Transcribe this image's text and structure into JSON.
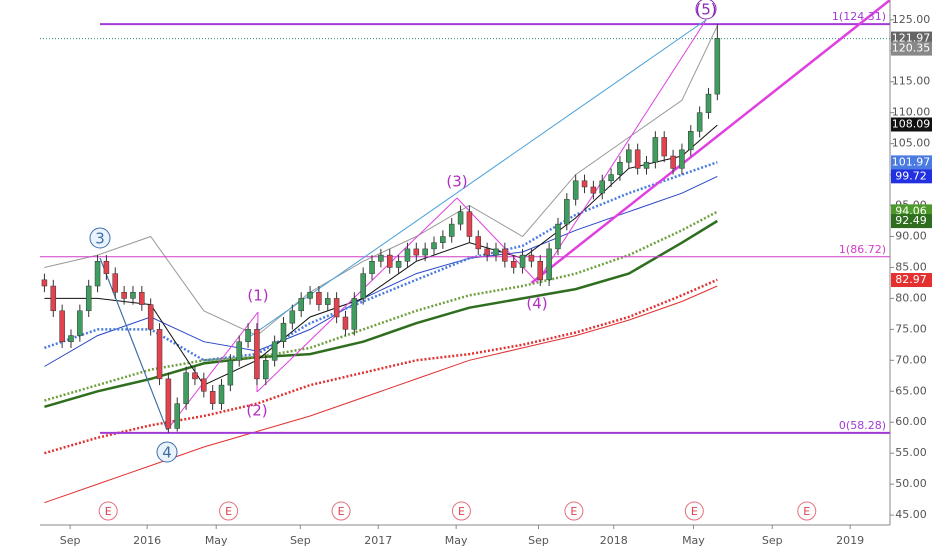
{
  "chart_data": {
    "type": "candlestick",
    "open": [
      83,
      82,
      78,
      73,
      74,
      78,
      82,
      86,
      84,
      81,
      80,
      81,
      79,
      75,
      67,
      59,
      63,
      68,
      67,
      65,
      63,
      66,
      70,
      73,
      75,
      67,
      70,
      73,
      76,
      78,
      80,
      81,
      79,
      80,
      77,
      75,
      80,
      84,
      86,
      87,
      85,
      86,
      88,
      87,
      88,
      89,
      90,
      92,
      94,
      90,
      88,
      87,
      88,
      86,
      85,
      87,
      86,
      83,
      88,
      92,
      96,
      99,
      98,
      97,
      99,
      100,
      102,
      104,
      101,
      102,
      106,
      103,
      101,
      104,
      107,
      110,
      113
    ],
    "high": [
      84,
      83,
      79,
      75,
      79,
      83,
      87,
      87,
      85,
      82,
      82,
      82,
      80,
      76,
      68,
      64,
      69,
      69,
      68,
      66,
      67,
      71,
      74,
      76,
      76,
      71,
      74,
      77,
      79,
      81,
      82,
      82,
      81,
      81,
      78,
      81,
      85,
      87,
      88,
      88,
      87,
      89,
      89,
      89,
      90,
      91,
      93,
      95,
      95,
      91,
      89,
      89,
      89,
      87,
      88,
      88,
      87,
      89,
      93,
      97,
      100,
      100,
      99,
      100,
      101,
      103,
      105,
      105,
      103,
      107,
      107,
      104,
      105,
      108,
      111,
      114,
      124.3
    ],
    "low": [
      81,
      77,
      72,
      72,
      73,
      77,
      81,
      83,
      80,
      79,
      79,
      78,
      74,
      66,
      58.3,
      58.5,
      62,
      66,
      64,
      62,
      62,
      65,
      69,
      72,
      66,
      66,
      69,
      72,
      75,
      77,
      79,
      78,
      78,
      76,
      74,
      74,
      79,
      83,
      85,
      84,
      84,
      85,
      86,
      86,
      87,
      88,
      89,
      91,
      89,
      87,
      86,
      86,
      85,
      84,
      84,
      85,
      82,
      82,
      87,
      91,
      95,
      97,
      96,
      96,
      98,
      99,
      101,
      100,
      100,
      101,
      102,
      100,
      100,
      103,
      106,
      109,
      112
    ],
    "close": [
      82,
      78,
      73,
      74,
      78,
      82,
      86,
      84,
      81,
      80,
      81,
      79,
      75,
      67,
      59,
      63,
      68,
      67,
      65,
      63,
      66,
      70,
      73,
      75,
      67,
      70,
      73,
      76,
      78,
      80,
      81,
      79,
      80,
      77,
      75,
      80,
      84,
      86,
      87,
      85,
      86,
      88,
      87,
      88,
      89,
      90,
      92,
      94,
      90,
      88,
      87,
      88,
      86,
      85,
      87,
      86,
      83,
      88,
      92,
      96,
      99,
      98,
      97,
      99,
      100,
      102,
      104,
      101,
      102,
      106,
      103,
      101,
      104,
      107,
      110,
      113,
      122
    ],
    "up_color": "#3f9e5f",
    "down_color": "#e2434f",
    "xlim": [
      0,
      96
    ],
    "xticks": [
      {
        "value": 3.4,
        "label": "Sep"
      },
      {
        "value": 12.1,
        "label": "2016"
      },
      {
        "value": 19.9,
        "label": "May"
      },
      {
        "value": 29.4,
        "label": "Sep"
      },
      {
        "value": 38.2,
        "label": "2017"
      },
      {
        "value": 47.0,
        "label": "May"
      },
      {
        "value": 56.3,
        "label": "Sep"
      },
      {
        "value": 64.8,
        "label": "2018"
      },
      {
        "value": 73.8,
        "label": "May"
      },
      {
        "value": 82.7,
        "label": "Sep"
      },
      {
        "value": 91.5,
        "label": "2019"
      }
    ],
    "ylim": [
      43.4,
      128.2
    ],
    "yticks": [
      {
        "value": 45,
        "label": "45.00"
      },
      {
        "value": 50,
        "label": "50.00"
      },
      {
        "value": 55,
        "label": "55.00"
      },
      {
        "value": 60,
        "label": "60.00"
      },
      {
        "value": 65,
        "label": "65.00"
      },
      {
        "value": 70,
        "label": "70.00"
      },
      {
        "value": 75,
        "label": "75.00"
      },
      {
        "value": 80,
        "label": "80.00"
      },
      {
        "value": 85,
        "label": "85.00"
      },
      {
        "value": 90,
        "label": "90.00"
      },
      {
        "value": 95,
        "label": "95.00"
      },
      {
        "value": 100,
        "label": "100.00"
      },
      {
        "value": 105,
        "label": "105.00"
      },
      {
        "value": 110,
        "label": "110.00"
      },
      {
        "value": 115,
        "label": "115.00"
      },
      {
        "value": 120,
        "label": "120.00"
      },
      {
        "value": 125,
        "label": "125.00"
      }
    ],
    "overlay_x": [
      0.5,
      6.5,
      12.5,
      18.5,
      24.5,
      30.5,
      36.5,
      42.5,
      48.5,
      54.5,
      60.5,
      66.5,
      72.5,
      76.5
    ],
    "overlays": [
      {
        "color": "#999999",
        "dotted": false,
        "width": 1,
        "values": [
          85,
          87,
          90,
          78,
          74,
          81,
          86,
          90,
          95,
          90,
          100,
          106,
          112,
          124
        ]
      },
      {
        "color": "#e03030",
        "dotted": false,
        "width": 1,
        "values": [
          47,
          50,
          53,
          56,
          58.5,
          61,
          64,
          67,
          70,
          72,
          74,
          76.5,
          79.5,
          82
        ]
      },
      {
        "color": "#e03030",
        "dotted": true,
        "width": 2.5,
        "values": [
          55,
          57.5,
          59.5,
          61,
          63,
          66,
          68,
          70,
          71,
          72.5,
          74.5,
          77,
          80.5,
          83
        ]
      },
      {
        "color": "#2f6e1e",
        "dotted": false,
        "width": 2.5,
        "values": [
          62.5,
          65,
          67,
          69.5,
          70.5,
          71,
          73,
          76,
          78.5,
          80,
          81.5,
          84,
          89,
          92.5
        ]
      },
      {
        "color": "#6fa040",
        "dotted": true,
        "width": 2.5,
        "values": [
          63.5,
          66,
          68.5,
          70,
          70.5,
          72,
          75,
          78,
          80.5,
          82,
          84,
          87,
          91,
          94
        ]
      },
      {
        "color": "#2846c8",
        "dotted": false,
        "width": 1,
        "values": [
          69,
          74,
          77,
          73,
          71.5,
          75,
          80,
          84,
          86.5,
          87.5,
          91,
          94,
          97,
          99.7
        ]
      },
      {
        "color": "#4a7be0",
        "dotted": true,
        "width": 2.5,
        "values": [
          72,
          75,
          75,
          70,
          71,
          76,
          79.5,
          83,
          86.5,
          88.5,
          93.5,
          97,
          100,
          102
        ]
      },
      {
        "color": "#111111",
        "dotted": false,
        "width": 1,
        "values": [
          80,
          80,
          79,
          66,
          70,
          77,
          80,
          86,
          89,
          86.5,
          93,
          101,
          103,
          108
        ]
      }
    ],
    "levels": [
      {
        "value": 124.31,
        "label": "1(124.31)",
        "color": "#a23bd6"
      },
      {
        "value": 86.72,
        "label": "1(86.72)",
        "color": "#d43bc9"
      },
      {
        "value": 58.28,
        "label": "0(58.28)",
        "color": "#a23bd6"
      }
    ],
    "trendline": {
      "color": "#e040e0",
      "x": [
        55.5,
        96
      ],
      "values": [
        82.5,
        128.2
      ]
    },
    "last_price_line": 121.97,
    "price_tags": [
      {
        "value": 121.97,
        "color": "#666666"
      },
      {
        "value": 120.35,
        "color": "#888888"
      },
      {
        "value": 108.09,
        "color": "#111111"
      },
      {
        "value": 101.97,
        "color": "#4a7be0"
      },
      {
        "value": 99.72,
        "color": "#2130e0"
      },
      {
        "value": 94.06,
        "color": "#4c9a2a"
      },
      {
        "value": 92.49,
        "color": "#2f6e1e"
      },
      {
        "value": 82.97,
        "color": "#e53030"
      }
    ],
    "annotations": [
      "3",
      "4",
      "(1)",
      "(2)",
      "(3)",
      "(4)",
      "(5)"
    ],
    "events": {
      "x": [
        7.7,
        21.3,
        34.0,
        47.6,
        60.3,
        73.9,
        86.6
      ],
      "labels": [
        "E",
        "E",
        "E",
        "E",
        "E",
        "E",
        "E"
      ]
    }
  }
}
